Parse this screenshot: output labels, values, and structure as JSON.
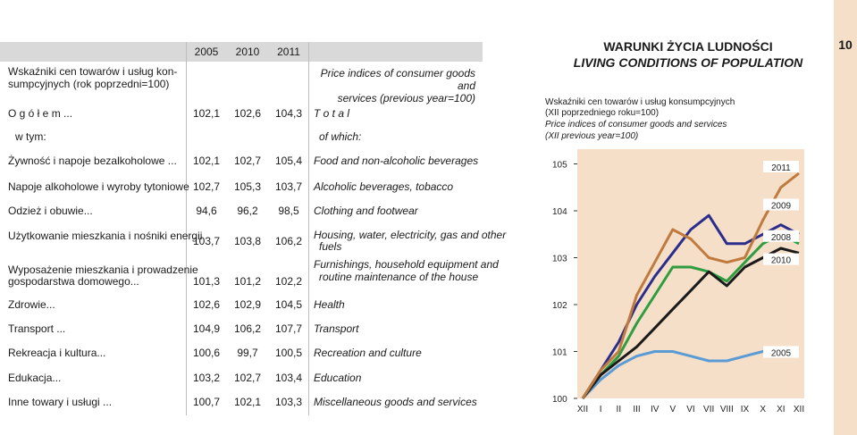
{
  "page_number": "10",
  "table": {
    "pl_title": "Wskaźniki cen towarów i usług konsumpcyjnych (rok poprzedni=100)",
    "pl_title_l1": "Wskaźniki cen towarów i usług kon-",
    "pl_title_l2": "sumpcyjnych (rok poprzedni=100)",
    "en_title_l1": "Price indices of consumer goods and",
    "en_title_l2": "services (previous year=100)",
    "years": [
      "2005",
      "2010",
      "2011"
    ],
    "rows": [
      {
        "pl": "O g ó ł e m ...",
        "v": [
          "102,1",
          "102,6",
          "104,3"
        ],
        "en": "T o t a l"
      },
      {
        "pl": "w tym:",
        "v": [
          "",
          "",
          ""
        ],
        "en": "of which:"
      },
      {
        "pl": "Żywność i napoje bezalkoholowe ...",
        "v": [
          "102,1",
          "102,7",
          "105,4"
        ],
        "en": "Food and non-alcoholic beverages"
      },
      {
        "pl": "Napoje alkoholowe i wyroby tytoniowe",
        "v": [
          "102,7",
          "105,3",
          "103,7"
        ],
        "en": "Alcoholic beverages, tobacco"
      },
      {
        "pl": "Odzież i obuwie...",
        "v": [
          "94,6",
          "96,2",
          "98,5"
        ],
        "en": "Clothing and footwear"
      },
      {
        "pl": "Użytkowanie mieszkania i nośniki energii",
        "v": [
          "103,7",
          "103,8",
          "106,2"
        ],
        "en": "Housing, water, electricity, gas and other",
        "en2": "fuels"
      },
      {
        "pl": "Wyposażenie mieszkania i prowadzenie",
        "pl2": "gospodarstwa domowego...",
        "v": [
          "101,3",
          "101,2",
          "102,2"
        ],
        "en": "Furnishings, household equipment and",
        "en2": "routine maintenance of the house"
      },
      {
        "pl": "Zdrowie...",
        "v": [
          "102,6",
          "102,9",
          "104,5"
        ],
        "en": "Health"
      },
      {
        "pl": "Transport ...",
        "v": [
          "104,9",
          "106,2",
          "107,7"
        ],
        "en": "Transport"
      },
      {
        "pl": "Rekreacja i kultura...",
        "v": [
          "100,6",
          "99,7",
          "100,5"
        ],
        "en": "Recreation and culture"
      },
      {
        "pl": "Edukacja...",
        "v": [
          "103,2",
          "102,7",
          "103,4"
        ],
        "en": "Education"
      },
      {
        "pl": "Inne towary i usługi ...",
        "v": [
          "100,7",
          "102,1",
          "103,3"
        ],
        "en": "Miscellaneous goods and services"
      }
    ]
  },
  "banner": {
    "pl": "WARUNKI ŻYCIA LUDNOŚCI",
    "en": "LIVING CONDITIONS OF POPULATION"
  },
  "chart_caption": {
    "pl_l1": "Wskaźniki cen towarów i usług konsumpcyjnych",
    "pl_l2": "(XII poprzedniego roku=100)",
    "en_l1": "Price indices of consumer goods and services",
    "en_l2": "(XII previous year=100)"
  },
  "chart_data": {
    "type": "line",
    "title": "",
    "xlabel": "",
    "ylabel": "",
    "categories": [
      "XII",
      "I",
      "II",
      "III",
      "IV",
      "V",
      "VI",
      "VII",
      "VIII",
      "IX",
      "X",
      "XI",
      "XII"
    ],
    "y_ticks": [
      "100",
      "101",
      "102",
      "103",
      "104",
      "105"
    ],
    "ylim": [
      100,
      105.2
    ],
    "grid": false,
    "series": [
      {
        "name": "2005",
        "color": "#5b9bd5",
        "values": [
          100.0,
          100.4,
          100.7,
          100.9,
          101.0,
          101.0,
          100.9,
          100.8,
          100.8,
          100.9,
          101.0,
          101.0,
          101.0
        ]
      },
      {
        "name": "2008",
        "color": "#2e9d3f",
        "values": [
          100.0,
          100.5,
          100.9,
          101.6,
          102.2,
          102.8,
          102.8,
          102.7,
          102.5,
          102.9,
          103.3,
          103.5,
          103.3
        ]
      },
      {
        "name": "2009",
        "color": "#2b2d8c",
        "values": [
          100.0,
          100.6,
          101.2,
          102.0,
          102.6,
          103.1,
          103.6,
          103.9,
          103.3,
          103.3,
          103.5,
          103.7,
          103.5
        ]
      },
      {
        "name": "2010",
        "color": "#1a1a1a",
        "values": [
          100.0,
          100.5,
          100.8,
          101.1,
          101.5,
          101.9,
          102.3,
          102.7,
          102.4,
          102.8,
          103.0,
          103.2,
          103.1
        ]
      },
      {
        "name": "2011",
        "color": "#c07a3e",
        "values": [
          100.0,
          100.6,
          101.0,
          102.2,
          102.9,
          103.6,
          103.4,
          103.0,
          102.9,
          103.0,
          103.8,
          104.5,
          104.8
        ]
      }
    ],
    "series_labels": [
      "2011",
      "2009",
      "2008",
      "2010",
      "2005"
    ]
  }
}
